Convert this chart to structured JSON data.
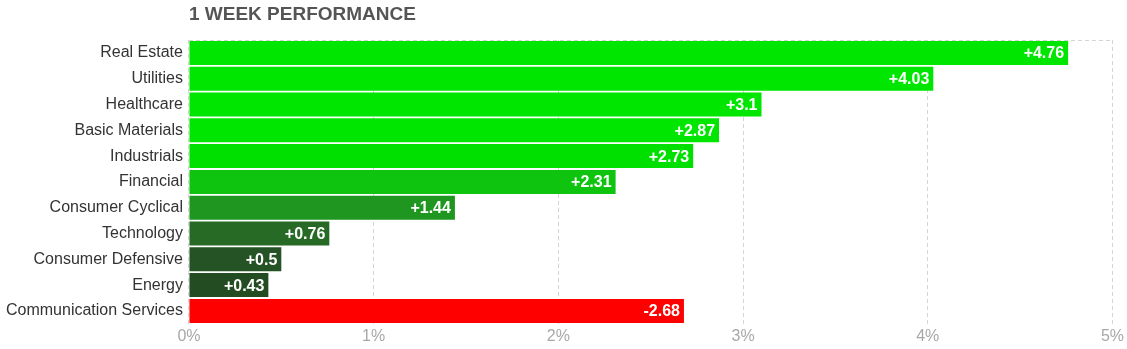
{
  "chart_data": {
    "type": "bar",
    "orientation": "horizontal",
    "title": "1 WEEK PERFORMANCE",
    "categories": [
      "Real Estate",
      "Utilities",
      "Healthcare",
      "Basic Materials",
      "Industrials",
      "Financial",
      "Consumer Cyclical",
      "Technology",
      "Consumer Defensive",
      "Energy",
      "Communication Services"
    ],
    "values": [
      4.76,
      4.03,
      3.1,
      2.87,
      2.73,
      2.31,
      1.44,
      0.76,
      0.5,
      0.43,
      -2.68
    ],
    "base": [
      0,
      0,
      0,
      0,
      0,
      0,
      0,
      0,
      0,
      0,
      2.68
    ],
    "colors": [
      "#00e600",
      "#00e600",
      "#00e600",
      "#00e600",
      "#00e000",
      "#0fc40f",
      "#1f961f",
      "#266a26",
      "#255325",
      "#234c23",
      "#ff0000"
    ],
    "value_labels": [
      "+4.76",
      "+4.03",
      "+3.1",
      "+2.87",
      "+2.73",
      "+2.31",
      "+1.44",
      "+0.76",
      "+0.5",
      "+0.43",
      "-2.68"
    ],
    "xlim": [
      0,
      5
    ],
    "xticks": [
      {
        "value": 0,
        "label": "0%"
      },
      {
        "value": 1,
        "label": "1%"
      },
      {
        "value": 2,
        "label": "2%"
      },
      {
        "value": 3,
        "label": "3%"
      },
      {
        "value": 4,
        "label": "4%"
      },
      {
        "value": 5,
        "label": "5%"
      }
    ],
    "grid": "x",
    "legend": false
  }
}
